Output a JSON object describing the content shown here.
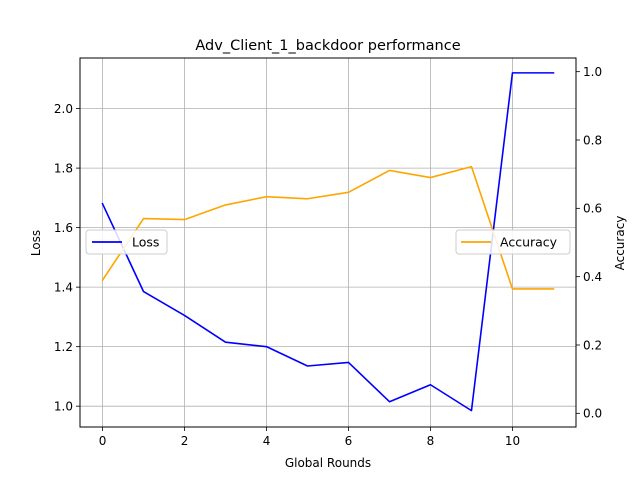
{
  "chart_data": {
    "type": "line",
    "title": "Adv_Client_1_backdoor performance",
    "xlabel": "Global Rounds",
    "ylabel": "Loss",
    "y2label": "Accuracy",
    "x": [
      0,
      1,
      2,
      3,
      4,
      5,
      6,
      7,
      8,
      9,
      10,
      11
    ],
    "xlim": [
      -0.55,
      11.55
    ],
    "ylim": [
      0.93,
      2.17
    ],
    "y2lim": [
      -0.04,
      1.04
    ],
    "xticks": [
      "0",
      "2",
      "4",
      "6",
      "8",
      "10"
    ],
    "xtick_values": [
      0,
      2,
      4,
      6,
      8,
      10
    ],
    "yticks": [
      "1.0",
      "1.2",
      "1.4",
      "1.6",
      "1.8",
      "2.0"
    ],
    "ytick_values": [
      1.0,
      1.2,
      1.4,
      1.6,
      1.8,
      2.0
    ],
    "y2ticks": [
      "0.0",
      "0.2",
      "0.4",
      "0.6",
      "0.8",
      "1.0"
    ],
    "y2tick_values": [
      0.0,
      0.2,
      0.4,
      0.6,
      0.8,
      1.0
    ],
    "grid": true,
    "series": [
      {
        "name": "Loss",
        "axis": "left",
        "color": "#0000ff",
        "legend_position": "center-left",
        "values": [
          1.68,
          1.385,
          1.305,
          1.215,
          1.2,
          1.135,
          1.147,
          1.015,
          1.072,
          0.985,
          2.12,
          2.12
        ]
      },
      {
        "name": "Accuracy",
        "axis": "right",
        "color": "#ffa500",
        "legend_position": "center-right",
        "values": [
          0.39,
          0.57,
          0.567,
          0.61,
          0.634,
          0.628,
          0.647,
          0.711,
          0.69,
          0.722,
          0.364,
          0.364
        ]
      }
    ]
  }
}
